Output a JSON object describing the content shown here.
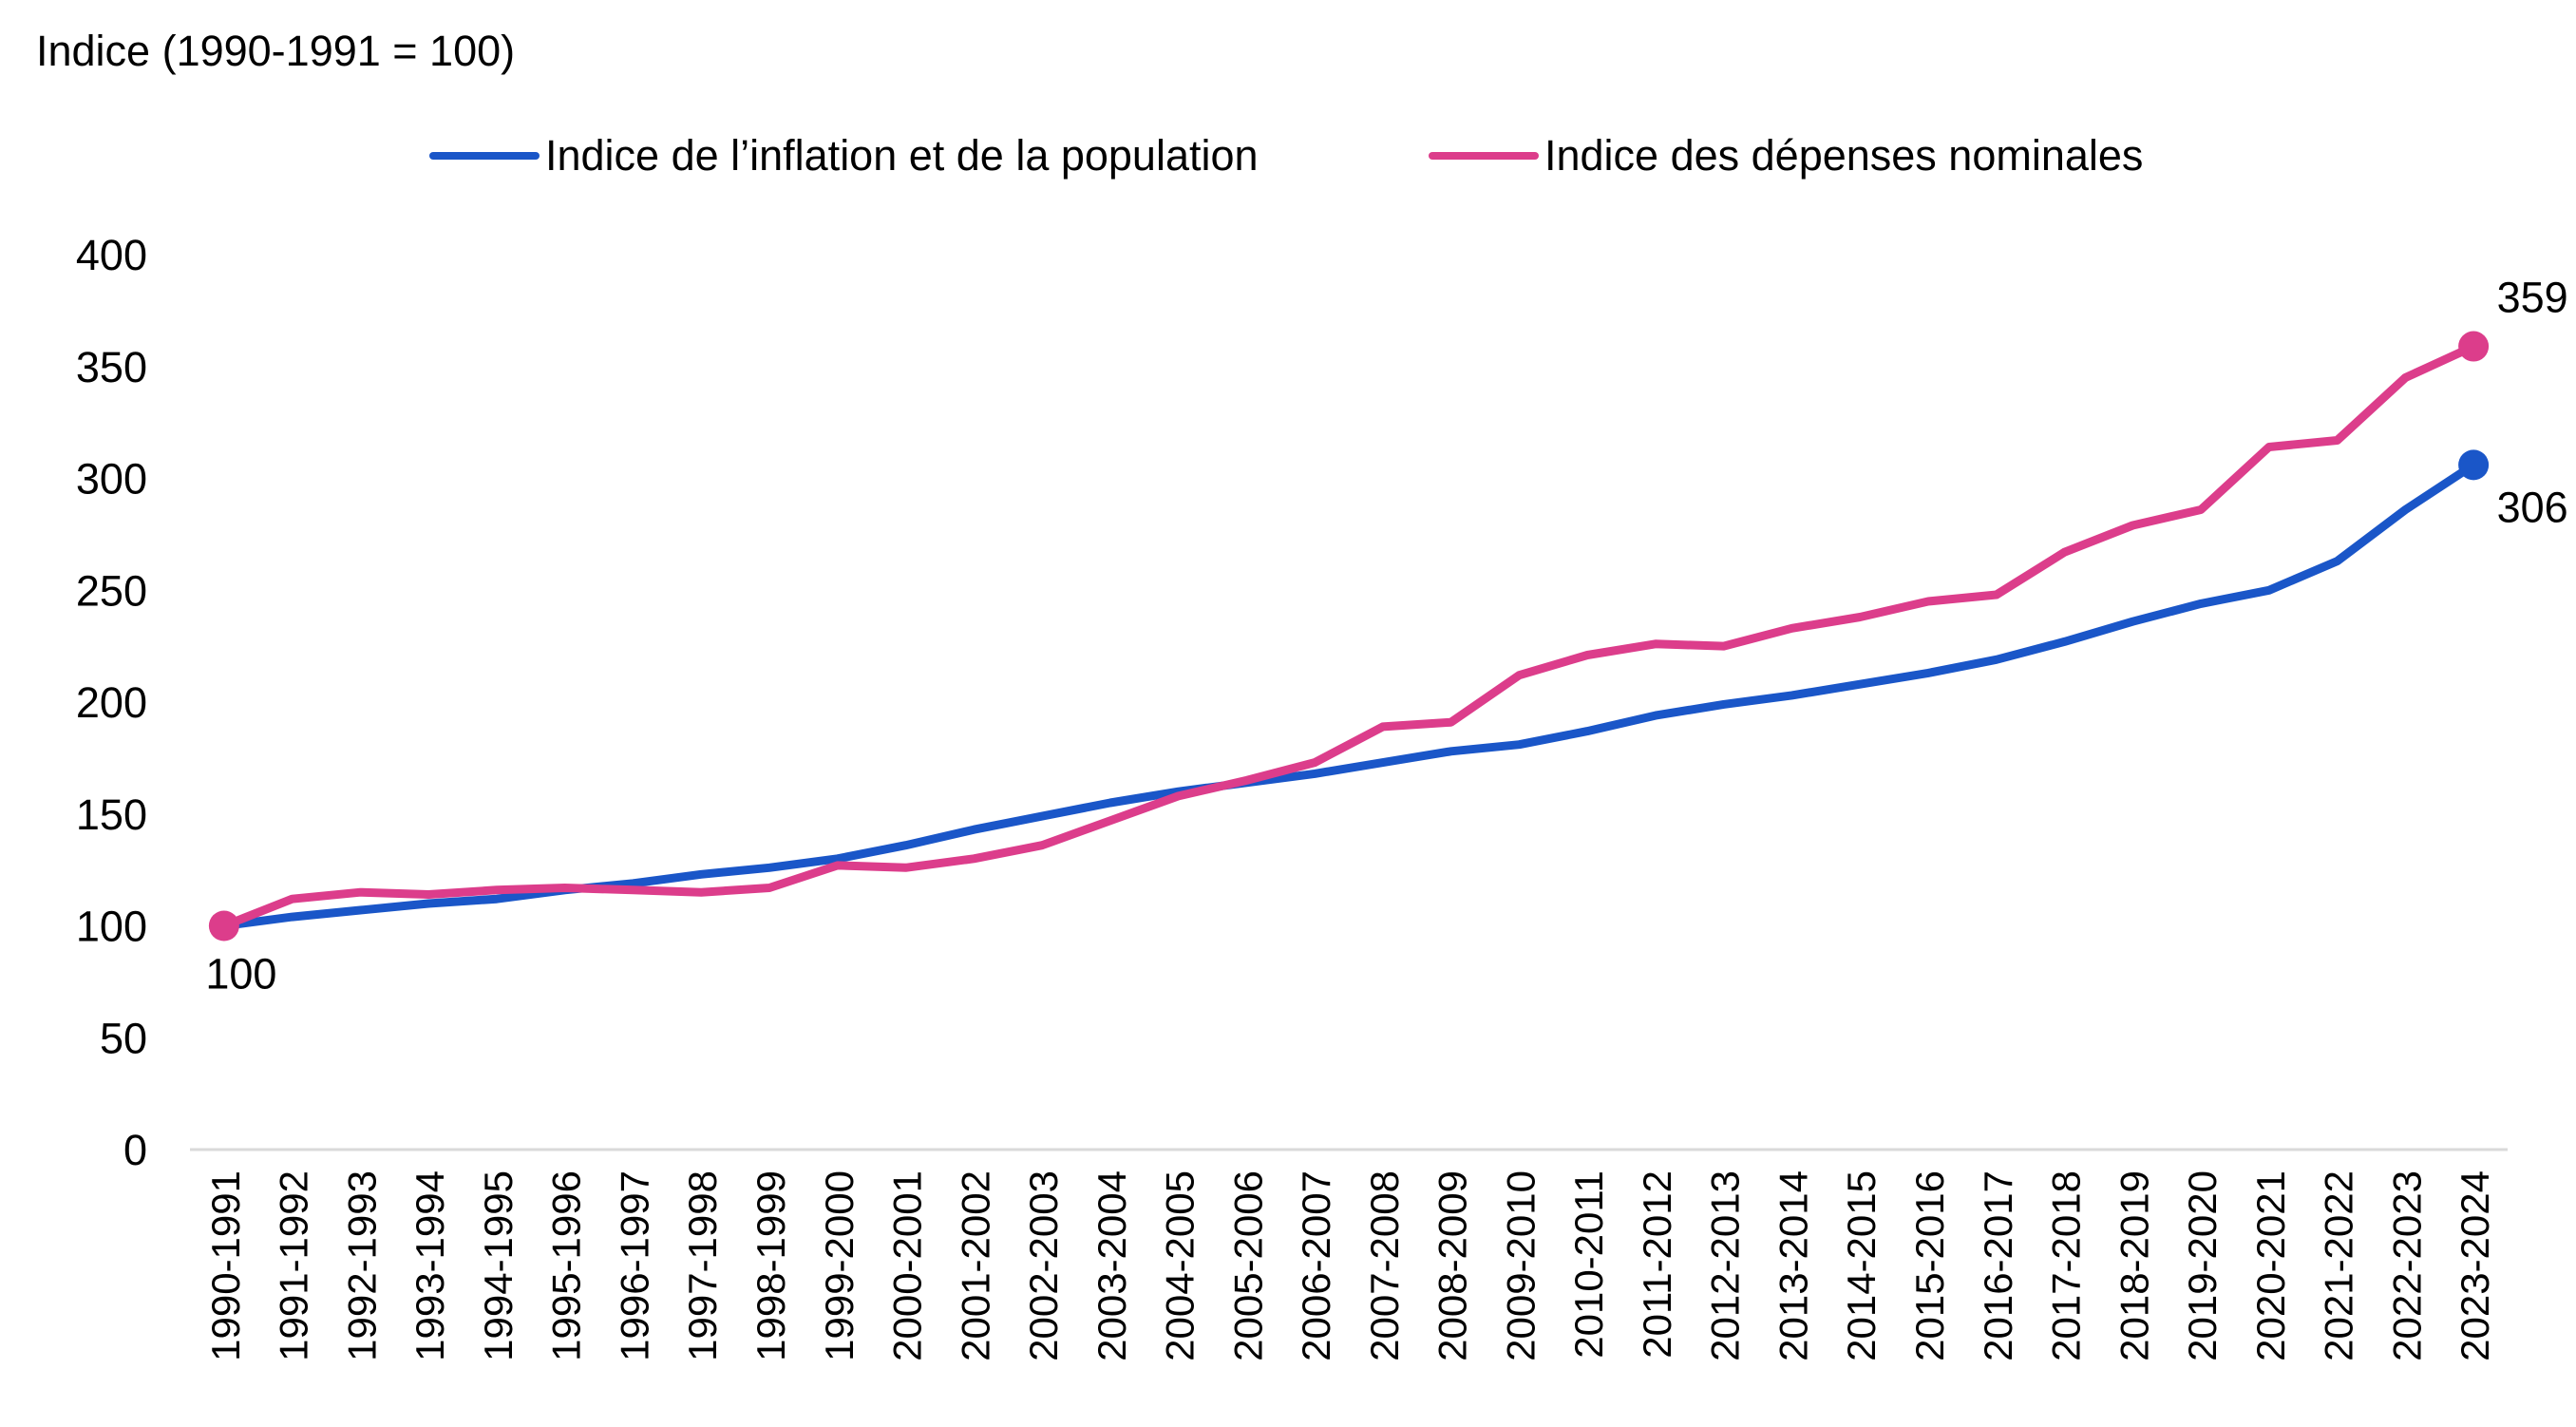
{
  "chart_data": {
    "type": "line",
    "ylabel": "Indice (1990-1991 = 100)",
    "ylim": [
      0,
      400
    ],
    "yticks": [
      0,
      50,
      100,
      150,
      200,
      250,
      300,
      350,
      400
    ],
    "grid": false,
    "legend_position": "top",
    "categories": [
      "1990-1991",
      "1991-1992",
      "1992-1993",
      "1993-1994",
      "1994-1995",
      "1995-1996",
      "1996-1997",
      "1997-1998",
      "1998-1999",
      "1999-2000",
      "2000-2001",
      "2001-2002",
      "2002-2003",
      "2003-2004",
      "2004-2005",
      "2005-2006",
      "2006-2007",
      "2007-2008",
      "2008-2009",
      "2009-2010",
      "2010-2011",
      "2011-2012",
      "2012-2013",
      "2013-2014",
      "2014-2015",
      "2015-2016",
      "2016-2017",
      "2017-2018",
      "2018-2019",
      "2019-2020",
      "2020-2021",
      "2021-2022",
      "2022-2023",
      "2023-2024"
    ],
    "series": [
      {
        "name": "Indice de l’inflation et de la population",
        "color": "#1a56c8",
        "values": [
          100,
          104,
          107,
          110,
          112,
          116,
          119,
          123,
          126,
          130,
          136,
          143,
          149,
          155,
          160,
          164,
          168,
          173,
          178,
          181,
          187,
          194,
          199,
          203,
          208,
          213,
          219,
          227,
          236,
          244,
          250,
          263,
          286,
          306
        ],
        "end_label": "306"
      },
      {
        "name": "Indice des dépenses nominales",
        "color": "#dc3d8b",
        "values": [
          100,
          112,
          115,
          114,
          116,
          117,
          116,
          115,
          117,
          127,
          126,
          130,
          136,
          147,
          158,
          165,
          173,
          189,
          191,
          212,
          221,
          226,
          225,
          233,
          238,
          245,
          248,
          267,
          279,
          286,
          314,
          317,
          345,
          359
        ],
        "start_label": "100",
        "end_label": "359"
      }
    ]
  }
}
